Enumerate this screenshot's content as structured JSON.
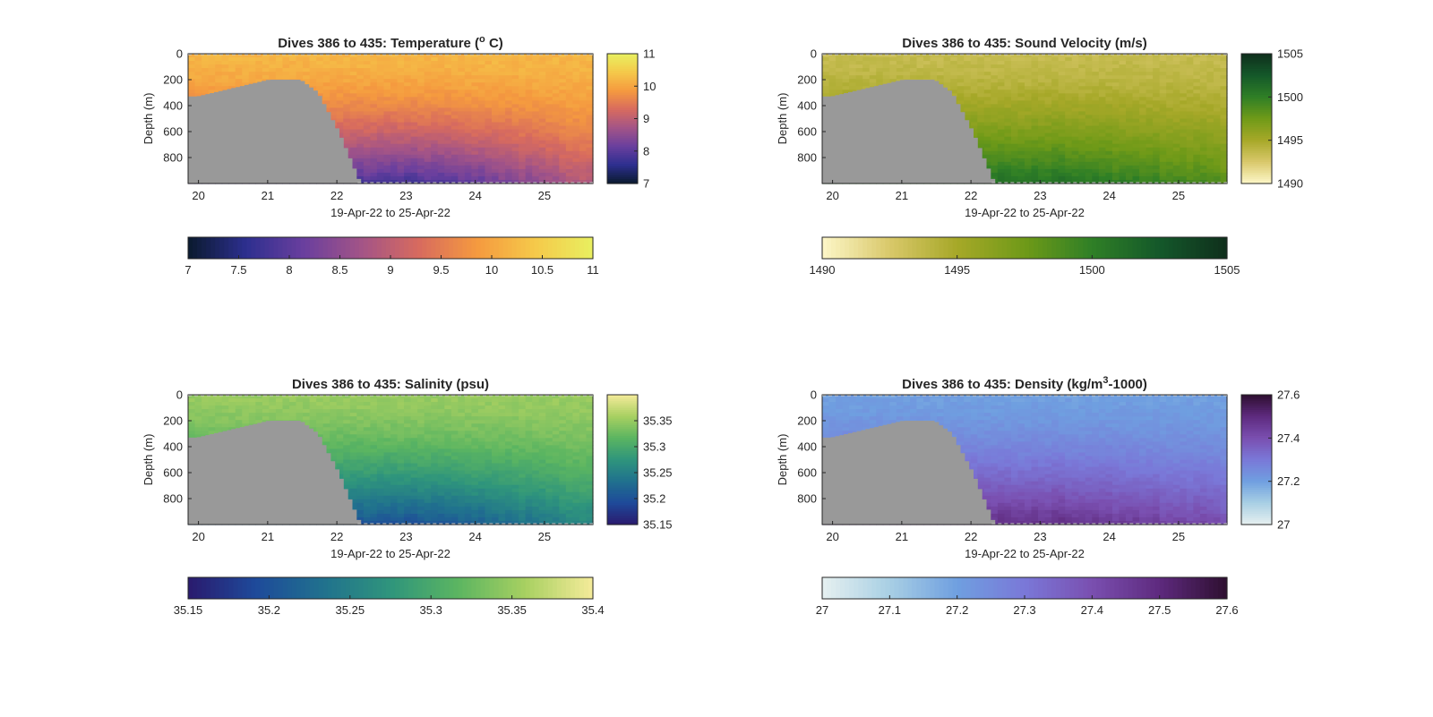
{
  "chart_data": [
    {
      "type": "heatmap",
      "title": "Dives 386 to 435: Temperature (",
      "title_sup": "o",
      "title_end": " C)",
      "xlabel": "19-Apr-22 to 25-Apr-22",
      "ylabel": "Depth (m)",
      "xlim": [
        19.85,
        25.7
      ],
      "ylim": [
        0,
        1000
      ],
      "y_reversed": true,
      "xticks": [
        "20",
        "21",
        "22",
        "23",
        "24",
        "25"
      ],
      "yticks": [
        "0",
        "200",
        "400",
        "600",
        "800"
      ],
      "colormap": "thermal",
      "colors": [
        "#0a1a2e",
        "#2d2f8f",
        "#6a3f9e",
        "#a35487",
        "#d86b5e",
        "#f59a3f",
        "#f5c94a",
        "#e8f060"
      ],
      "clim": [
        7,
        11
      ],
      "colorbar_ticks": [
        "7",
        "8",
        "9",
        "10",
        "11"
      ],
      "h_colorbar_ticks": [
        "7",
        "7.5",
        "8",
        "8.5",
        "9",
        "9.5",
        "10",
        "10.5",
        "11"
      ],
      "surface": 10.2,
      "deep": 7.8,
      "deep_far": 8.9,
      "bathymetry_color": "#999999"
    },
    {
      "type": "heatmap",
      "title": "Dives 386 to 435: Sound Velocity (m/s)",
      "xlabel": "19-Apr-22 to 25-Apr-22",
      "ylabel": "Depth (m)",
      "xlim": [
        19.85,
        25.7
      ],
      "ylim": [
        0,
        1000
      ],
      "y_reversed": true,
      "xticks": [
        "20",
        "21",
        "22",
        "23",
        "24",
        "25"
      ],
      "yticks": [
        "0",
        "200",
        "400",
        "600",
        "800"
      ],
      "colormap": "speed",
      "colors": [
        "#fdf7c8",
        "#d9c86a",
        "#a6a828",
        "#6f9a18",
        "#2f7f26",
        "#14582a",
        "#0f2f1c"
      ],
      "clim": [
        1490,
        1505
      ],
      "colorbar_ticks": [
        "1490",
        "1495",
        "1500",
        "1505"
      ],
      "h_colorbar_ticks": [
        "1490",
        "1495",
        "1500",
        "1505"
      ],
      "surface": 1493.5,
      "deep": 1501,
      "deep_far": 1498.5,
      "bathymetry_color": "#999999"
    },
    {
      "type": "heatmap",
      "title": "Dives 386 to 435: Salinity (psu)",
      "xlabel": "19-Apr-22 to 25-Apr-22",
      "ylabel": "Depth (m)",
      "xlim": [
        19.85,
        25.7
      ],
      "ylim": [
        0,
        1000
      ],
      "y_reversed": true,
      "xticks": [
        "20",
        "21",
        "22",
        "23",
        "24",
        "25"
      ],
      "yticks": [
        "0",
        "200",
        "400",
        "600",
        "800"
      ],
      "colormap": "haline",
      "colors": [
        "#2a1a6e",
        "#1e4a9a",
        "#20718e",
        "#2f957c",
        "#5bb561",
        "#a8d061",
        "#f5eb9a"
      ],
      "clim": [
        35.15,
        35.4
      ],
      "colorbar_ticks": [
        "35.15",
        "35.2",
        "35.25",
        "35.3",
        "35.35"
      ],
      "h_colorbar_ticks": [
        "35.15",
        "35.2",
        "35.25",
        "35.3",
        "35.35",
        "35.4"
      ],
      "surface": 35.35,
      "deep": 35.2,
      "deep_far": 35.26,
      "bathymetry_color": "#999999"
    },
    {
      "type": "heatmap",
      "title": "Dives 386 to 435: Density (kg/m",
      "title_sup": "3",
      "title_end": "-1000)",
      "xlabel": "19-Apr-22 to 25-Apr-22",
      "ylabel": "Depth (m)",
      "xlim": [
        19.85,
        25.7
      ],
      "ylim": [
        0,
        1000
      ],
      "y_reversed": true,
      "xticks": [
        "20",
        "21",
        "22",
        "23",
        "24",
        "25"
      ],
      "yticks": [
        "0",
        "200",
        "400",
        "600",
        "800"
      ],
      "colormap": "dense",
      "colors": [
        "#e6f0f0",
        "#a8cfe4",
        "#6f9fe0",
        "#7a78d8",
        "#7a4fb0",
        "#5e2a7e",
        "#2e0f30"
      ],
      "clim": [
        27,
        27.6
      ],
      "colorbar_ticks": [
        "27",
        "27.2",
        "27.4",
        "27.6"
      ],
      "h_colorbar_ticks": [
        "27",
        "27.1",
        "27.2",
        "27.3",
        "27.4",
        "27.5",
        "27.6"
      ],
      "surface": 27.2,
      "deep": 27.48,
      "deep_far": 27.4,
      "bathymetry_color": "#999999"
    }
  ]
}
